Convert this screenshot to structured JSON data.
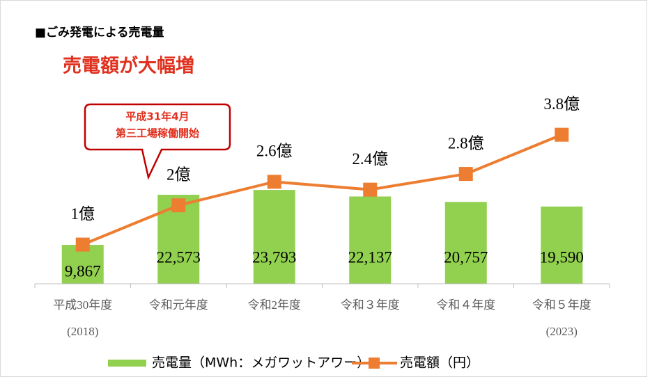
{
  "chart_data": {
    "type": "bar_line",
    "title": "■ごみ発電による売電量",
    "subtitle": "売電額が大幅増",
    "annotation": [
      "平成31年4月",
      "第三工場稼働開始"
    ],
    "categories": [
      [
        "平成30年度",
        "(2018)"
      ],
      [
        "令和元年度"
      ],
      [
        "令和2年度"
      ],
      [
        "令和３年度"
      ],
      [
        "令和４年度"
      ],
      [
        "令和５年度",
        "(2023)"
      ]
    ],
    "series": [
      {
        "name": "売電量（MWh：メガワットアワー）",
        "type": "bar",
        "color": "#92d050",
        "values": [
          9867,
          22573,
          23793,
          22137,
          20757,
          19590
        ],
        "value_labels": [
          "9,867",
          "22,573",
          "23,793",
          "22,137",
          "20,757",
          "19,590"
        ]
      },
      {
        "name": "売電額（円）",
        "type": "line",
        "color": "#ed7d31",
        "values": [
          1,
          2,
          2.6,
          2.4,
          2.8,
          3.8
        ],
        "value_labels": [
          "1億",
          "2億",
          "2.6億",
          "2.4億",
          "2.8億",
          "3.8億"
        ]
      }
    ]
  }
}
